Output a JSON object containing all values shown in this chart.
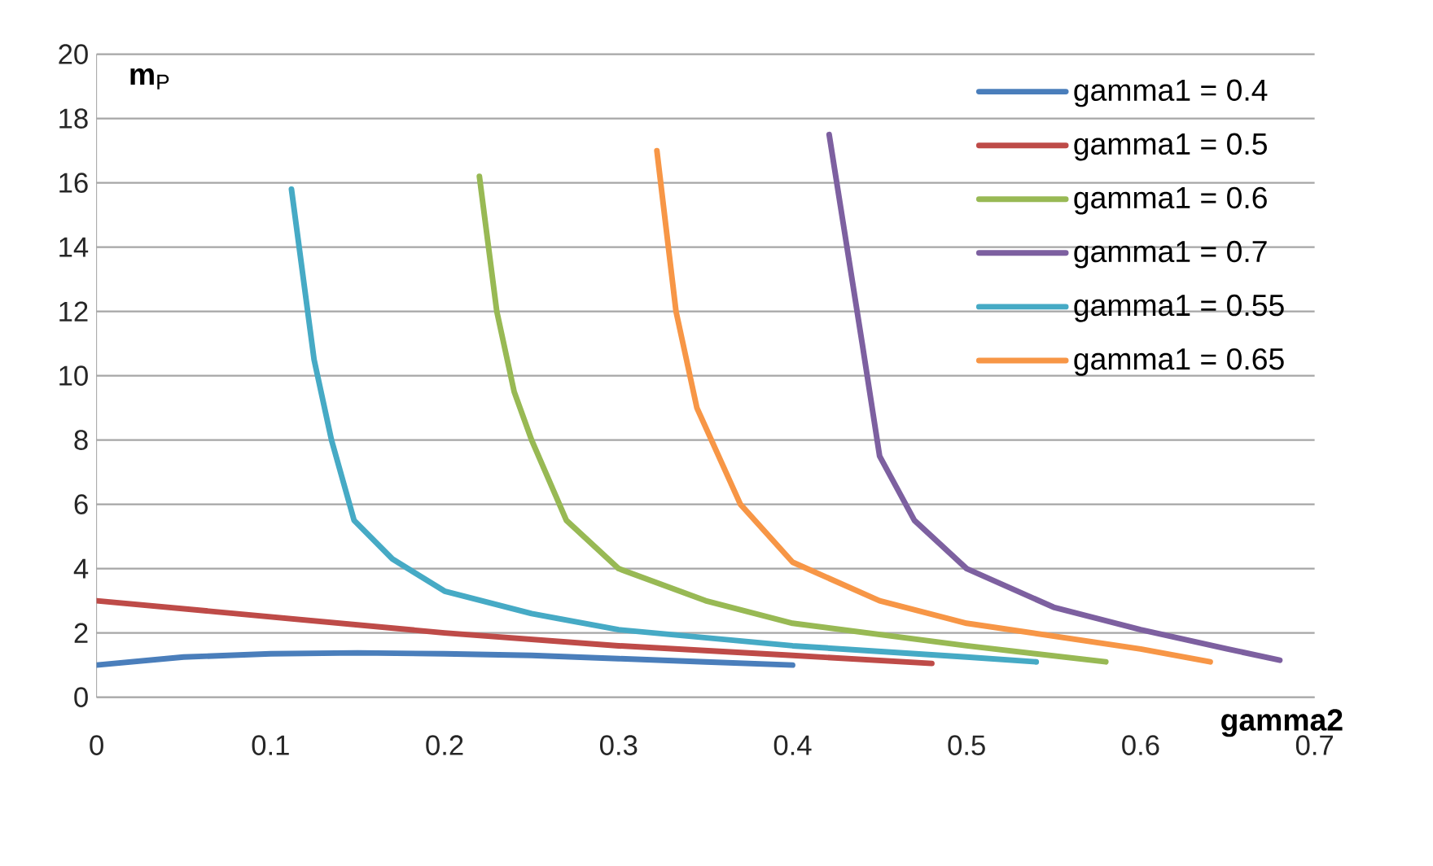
{
  "chart_data": {
    "type": "line",
    "xlabel": "gamma2",
    "ylabel": "**m**$_{P}$",
    "xlim": [
      0,
      0.7
    ],
    "ylim": [
      0,
      20
    ],
    "xticks": [
      0,
      0.1,
      0.2,
      0.3,
      0.4,
      0.5,
      0.6,
      0.7
    ],
    "yticks": [
      0,
      2,
      4,
      6,
      8,
      10,
      12,
      14,
      16,
      18,
      20
    ],
    "grid": "y",
    "legend": "top right",
    "marker": "none",
    "line_style": "solid",
    "series": [
      {
        "name": "gamma1 = 0.4",
        "color": "#4a7ebb",
        "x": [
          0,
          0.05,
          0.1,
          0.15,
          0.2,
          0.25,
          0.3,
          0.35,
          0.4
        ],
        "values": [
          1.0,
          1.25,
          1.35,
          1.38,
          1.35,
          1.3,
          1.2,
          1.1,
          1.0
        ]
      },
      {
        "name": "gamma1 = 0.5",
        "color": "#be4b48",
        "x": [
          0,
          0.1,
          0.2,
          0.3,
          0.4,
          0.48
        ],
        "values": [
          3.0,
          2.5,
          2.0,
          1.6,
          1.3,
          1.05
        ]
      },
      {
        "name": "gamma1 = 0.6",
        "color": "#98b954",
        "x": [
          0.22,
          0.23,
          0.24,
          0.25,
          0.27,
          0.3,
          0.35,
          0.4,
          0.5,
          0.58
        ],
        "values": [
          16.2,
          12,
          9.5,
          8,
          5.5,
          4.0,
          3.0,
          2.3,
          1.6,
          1.1
        ]
      },
      {
        "name": "gamma1 = 0.7",
        "color": "#7d60a0",
        "x": [
          0.421,
          0.44,
          0.45,
          0.47,
          0.5,
          0.55,
          0.6,
          0.65,
          0.68
        ],
        "values": [
          17.5,
          11,
          7.5,
          5.5,
          4.0,
          2.8,
          2.1,
          1.5,
          1.15
        ]
      },
      {
        "name": "gamma1 = 0.55",
        "color": "#46aac5",
        "x": [
          0.112,
          0.125,
          0.135,
          0.148,
          0.17,
          0.2,
          0.25,
          0.3,
          0.4,
          0.5,
          0.54
        ],
        "values": [
          15.8,
          10.5,
          8,
          5.5,
          4.3,
          3.3,
          2.6,
          2.1,
          1.6,
          1.25,
          1.1
        ]
      },
      {
        "name": "gamma1 = 0.65",
        "color": "#f79646",
        "x": [
          0.322,
          0.333,
          0.345,
          0.37,
          0.4,
          0.45,
          0.5,
          0.6,
          0.64
        ],
        "values": [
          17.0,
          12,
          9,
          6,
          4.2,
          3.0,
          2.3,
          1.5,
          1.1
        ]
      }
    ]
  }
}
